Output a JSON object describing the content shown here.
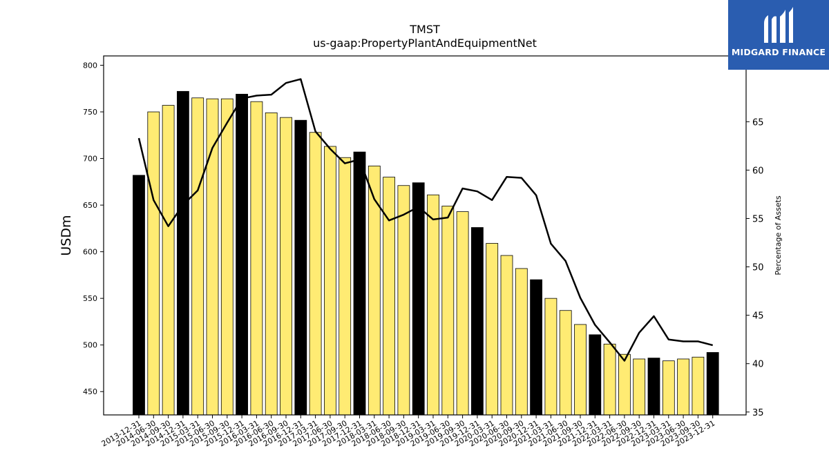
{
  "chart_data": {
    "type": "bar",
    "title": "TMST",
    "subtitle": "us-gaap:PropertyPlantAndEquipmentNet",
    "ylabel": "USDm",
    "y2label": "Percentage of Assets",
    "ylim": [
      425,
      810
    ],
    "y2lim": [
      34.7,
      71.8
    ],
    "yticks": [
      450,
      500,
      550,
      600,
      650,
      700,
      750,
      800
    ],
    "y2ticks": [
      35,
      40,
      45,
      50,
      55,
      60,
      65
    ],
    "categories": [
      "2013-12-31",
      "2014-06-30",
      "2014-09-30",
      "2014-12-31",
      "2015-03-31",
      "2015-06-30",
      "2015-09-30",
      "2015-12-31",
      "2016-03-31",
      "2016-06-30",
      "2016-09-30",
      "2016-12-31",
      "2017-03-31",
      "2017-06-30",
      "2017-09-30",
      "2017-12-31",
      "2018-03-31",
      "2018-06-30",
      "2018-09-30",
      "2018-12-31",
      "2019-03-31",
      "2019-06-30",
      "2019-09-30",
      "2019-12-31",
      "2020-03-31",
      "2020-06-30",
      "2020-09-30",
      "2020-12-31",
      "2021-03-31",
      "2021-06-30",
      "2021-09-30",
      "2021-12-31",
      "2022-03-31",
      "2022-06-30",
      "2022-09-30",
      "2022-12-31",
      "2023-03-31",
      "2023-06-30",
      "2023-09-30",
      "2023-12-31"
    ],
    "series": [
      {
        "type": "bar",
        "values": [
          682,
          750,
          757,
          772,
          765,
          764,
          764,
          769,
          761,
          749,
          744,
          741,
          728,
          713,
          701,
          707,
          692,
          680,
          671,
          674,
          661,
          649,
          643,
          626,
          609,
          596,
          582,
          570,
          550,
          537,
          522,
          511,
          501,
          490,
          485,
          486,
          483,
          485,
          487,
          492
        ],
        "annual": [
          true,
          false,
          false,
          true,
          false,
          false,
          false,
          true,
          false,
          false,
          false,
          true,
          false,
          false,
          false,
          true,
          false,
          false,
          false,
          true,
          false,
          false,
          false,
          true,
          false,
          false,
          false,
          true,
          false,
          false,
          false,
          true,
          false,
          false,
          false,
          true,
          false,
          false,
          false,
          true
        ]
      },
      {
        "type": "line",
        "axis": "right",
        "values": [
          63.3,
          56.9,
          54.2,
          56.4,
          57.9,
          62.3,
          64.9,
          67.4,
          67.7,
          67.8,
          69.0,
          69.4,
          64.0,
          62.2,
          60.7,
          61.1,
          57.0,
          54.8,
          55.4,
          56.2,
          54.9,
          55.1,
          58.1,
          57.8,
          56.9,
          59.3,
          59.2,
          57.4,
          52.4,
          50.6,
          46.8,
          44.0,
          42.2,
          40.3,
          43.2,
          44.9,
          42.5,
          42.3,
          42.3,
          41.9
        ]
      }
    ],
    "colors": {
      "annual_bar": "#000000",
      "quarter_bar": "#ffeb73",
      "line": "#000000"
    },
    "grid": false
  },
  "logo": {
    "text": "MIDGARD FINANCE",
    "background": "#2a5db0"
  }
}
